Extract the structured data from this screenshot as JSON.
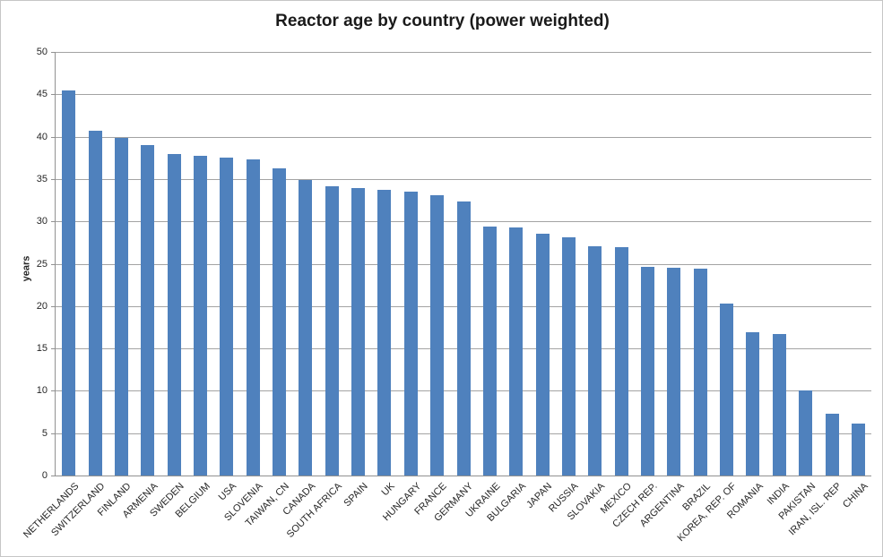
{
  "colors": {
    "bar": "#4f81bd",
    "gridline": "#a3a3a3",
    "axis_line": "#919191",
    "label_text": "#262626",
    "title_text": "#1a1a1a",
    "frame_border": "#c6c6c6",
    "background": "#ffffff"
  },
  "chart_data": {
    "type": "bar",
    "title": "Reactor age by country (power weighted)",
    "xlabel": "",
    "ylabel": "years",
    "ylim": [
      0,
      50
    ],
    "ytick_step": 5,
    "ytick_labels": [
      "0",
      "5",
      "10",
      "15",
      "20",
      "25",
      "30",
      "35",
      "40",
      "45",
      "50"
    ],
    "grid": true,
    "legend": "none",
    "categories": [
      "NETHERLANDS",
      "SWITZERLAND",
      "FINLAND",
      "ARMENIA",
      "SWEDEN",
      "BELGIUM",
      "USA",
      "SLOVENIA",
      "TAIWAN, CN",
      "CANADA",
      "SOUTH AFRICA",
      "SPAIN",
      "UK",
      "HUNGARY",
      "FRANCE",
      "GERMANY",
      "UKRAINE",
      "BULGARIA",
      "JAPAN",
      "RUSSIA",
      "SLOVAKIA",
      "MEXICO",
      "CZECH REP.",
      "ARGENTINA",
      "BRAZIL",
      "KOREA, REP. OF",
      "ROMANIA",
      "INDIA",
      "PAKISTAN",
      "IRAN, ISL. REP",
      "CHINA"
    ],
    "values": [
      45.5,
      40.7,
      39.9,
      39.0,
      38.0,
      37.7,
      37.5,
      37.3,
      36.3,
      34.9,
      34.1,
      33.9,
      33.7,
      33.5,
      33.1,
      32.4,
      29.4,
      29.3,
      28.5,
      28.1,
      27.1,
      27.0,
      24.6,
      24.5,
      24.4,
      20.3,
      16.9,
      16.7,
      10.1,
      7.3,
      6.1
    ]
  }
}
